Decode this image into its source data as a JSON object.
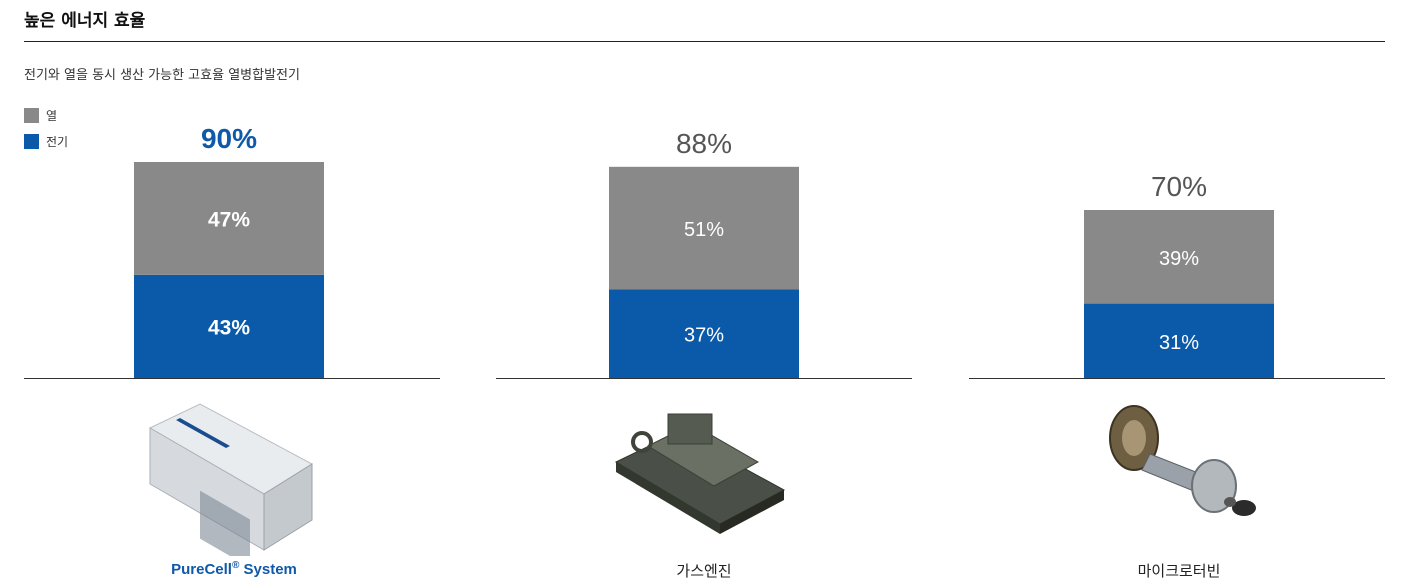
{
  "header": {
    "title": "높은 에너지 효율",
    "subtitle": "전기와 열을 동시 생산 가능한 고효율 열병합발전기"
  },
  "legend": {
    "heat_label": "열",
    "electric_label": "전기"
  },
  "colors": {
    "heat": "#898989",
    "electric": "#0b5aa9",
    "highlight_total": "#1059a9",
    "total": "#555555"
  },
  "captions": {
    "purecell_name": "PureCell",
    "purecell_reg": "®",
    "purecell_suffix": "System",
    "gas_engine": "가스엔진",
    "micro_turbine": "마이크로터빈"
  },
  "chart_data": {
    "type": "bar",
    "stacked": true,
    "categories": [
      "PureCell® System",
      "가스엔진",
      "마이크로터빈"
    ],
    "series": [
      {
        "name": "전기",
        "values": [
          43,
          37,
          31
        ]
      },
      {
        "name": "열",
        "values": [
          47,
          51,
          39
        ]
      }
    ],
    "totals": [
      90,
      88,
      70
    ],
    "total_labels": [
      "90%",
      "88%",
      "70%"
    ],
    "electric_labels": [
      "43%",
      "37%",
      "31%"
    ],
    "heat_labels": [
      "47%",
      "51%",
      "39%"
    ],
    "highlighted_index": 0,
    "legend_position": "top-left",
    "grid": false
  }
}
